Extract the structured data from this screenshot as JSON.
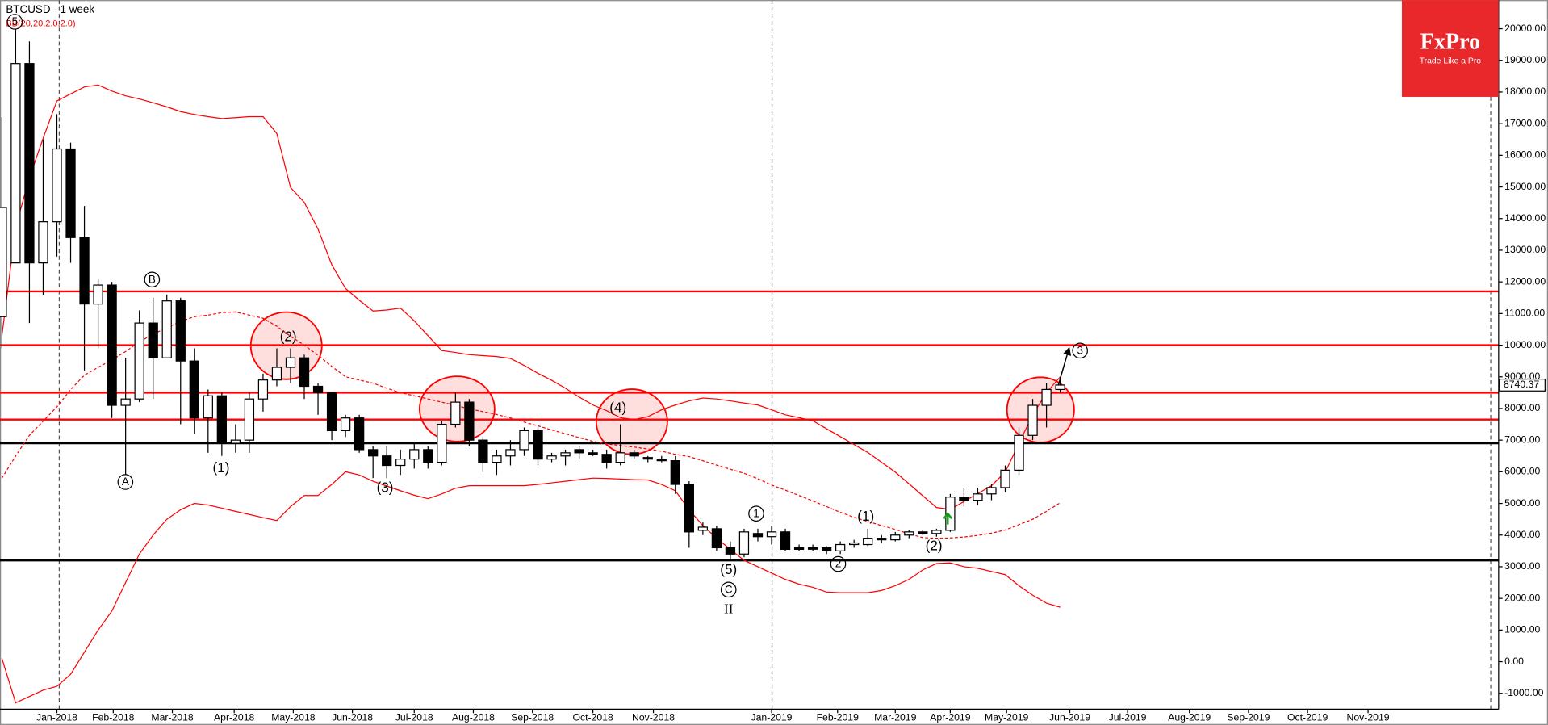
{
  "chart_data": {
    "type": "candlestick",
    "title": "BTCUSD - 1 week",
    "subtitle": "BB(20,20,2.0,2.0)",
    "brand": "FxPro",
    "tagline": "Trade Like a Pro",
    "xlim": [
      -0.14,
      108.9
    ],
    "xticks": [
      {
        "value": 4.0,
        "label": "Jan-2018"
      },
      {
        "value": 8.1,
        "label": "Feb-2018"
      },
      {
        "value": 12.4,
        "label": "Mar-2018"
      },
      {
        "value": 16.9,
        "label": "Apr-2018"
      },
      {
        "value": 21.2,
        "label": "May-2018"
      },
      {
        "value": 25.5,
        "label": "Jun-2018"
      },
      {
        "value": 30.0,
        "label": "Jul-2018"
      },
      {
        "value": 34.3,
        "label": "Aug-2018"
      },
      {
        "value": 38.6,
        "label": "Sep-2018"
      },
      {
        "value": 43.0,
        "label": "Oct-2018"
      },
      {
        "value": 47.4,
        "label": "Nov-2018"
      },
      {
        "value": 56.0,
        "label": "Jan-2019"
      },
      {
        "value": 60.8,
        "label": "Feb-2019"
      },
      {
        "value": 65.0,
        "label": "Mar-2019"
      },
      {
        "value": 69.0,
        "label": "Apr-2019"
      },
      {
        "value": 73.1,
        "label": "May-2019"
      },
      {
        "value": 77.7,
        "label": "Jun-2019"
      },
      {
        "value": 81.9,
        "label": "Jul-2019"
      },
      {
        "value": 86.4,
        "label": "Aug-2019"
      },
      {
        "value": 90.7,
        "label": "Sep-2019"
      },
      {
        "value": 95.0,
        "label": "Oct-2019"
      },
      {
        "value": 99.4,
        "label": "Nov-2019"
      }
    ],
    "ylim": [
      -1500,
      20905
    ],
    "yticks": [
      {
        "value": 20000,
        "label": "20000.00"
      },
      {
        "value": 19000,
        "label": "19000.00"
      },
      {
        "value": 18000,
        "label": "18000.00"
      },
      {
        "value": 17000,
        "label": "17000.00"
      },
      {
        "value": 16000,
        "label": "16000.00"
      },
      {
        "value": 15000,
        "label": "15000.00"
      },
      {
        "value": 14000,
        "label": "14000.00"
      },
      {
        "value": 13000,
        "label": "13000.00"
      },
      {
        "value": 12000,
        "label": "12000.00"
      },
      {
        "value": 11000,
        "label": "11000.00"
      },
      {
        "value": 10000,
        "label": "10000.00"
      },
      {
        "value": 9000,
        "label": "9000.00"
      },
      {
        "value": 8000,
        "label": "8000.00"
      },
      {
        "value": 7000,
        "label": "7000.00"
      },
      {
        "value": 6000,
        "label": "6000.00"
      },
      {
        "value": 5000,
        "label": "5000.00"
      },
      {
        "value": 4000,
        "label": "4000.00"
      },
      {
        "value": 3000,
        "label": "3000.00"
      },
      {
        "value": 2000,
        "label": "2000.00"
      },
      {
        "value": 1000,
        "label": "1000.00"
      },
      {
        "value": 0,
        "label": "0.00"
      },
      {
        "value": -1000,
        "label": "-1000.00"
      }
    ],
    "open": [
      10900,
      12600,
      18900,
      12600,
      13900,
      16200,
      13400,
      11300,
      11900,
      8100,
      8300,
      10700,
      9600,
      11400,
      9500,
      7700,
      8400,
      6900,
      7000,
      8300,
      8900,
      9300,
      9600,
      8700,
      8500,
      7300,
      7700,
      6700,
      6500,
      6200,
      6400,
      6700,
      6300,
      7500,
      8200,
      7000,
      6300,
      6500,
      6700,
      7300,
      6400,
      6500,
      6700,
      6600,
      6550,
      6300,
      6600,
      6450,
      6400,
      6350,
      5600,
      4150,
      4200,
      3600,
      3400,
      4050,
      3950,
      4100,
      3600,
      3600,
      3600,
      3500,
      3700,
      3700,
      3900,
      3850,
      4000,
      4100,
      4050,
      4150,
      5200,
      5100,
      5300,
      5500,
      6050,
      7150,
      8100,
      8600
    ],
    "high": [
      17200,
      20000,
      19600,
      16500,
      17300,
      16400,
      14400,
      12100,
      12000,
      9600,
      11100,
      11500,
      11600,
      11500,
      9900,
      8600,
      8500,
      7500,
      8500,
      9100,
      9900,
      9900,
      9700,
      8800,
      8500,
      7800,
      7800,
      6800,
      6800,
      6700,
      6900,
      6800,
      7600,
      8500,
      8300,
      7100,
      6700,
      7000,
      7400,
      7400,
      6600,
      6700,
      6800,
      6700,
      6700,
      7500,
      6700,
      6500,
      6500,
      6500,
      5700,
      4400,
      4300,
      3800,
      4200,
      4200,
      4300,
      4200,
      3700,
      3700,
      3650,
      3800,
      3850,
      4200,
      4000,
      4100,
      4150,
      4150,
      4200,
      5300,
      5500,
      5500,
      5600,
      6200,
      7400,
      8300,
      8800,
      9000
    ],
    "low": [
      9900,
      12600,
      10700,
      11600,
      12800,
      12600,
      9200,
      9900,
      7700,
      5900,
      8200,
      8300,
      9600,
      7500,
      7200,
      6600,
      6500,
      6600,
      6600,
      7900,
      8700,
      8800,
      8300,
      7800,
      7000,
      7100,
      6600,
      5800,
      5800,
      5900,
      6100,
      6100,
      6200,
      7400,
      6800,
      6000,
      5900,
      6200,
      6500,
      6200,
      6300,
      6200,
      6400,
      6500,
      6100,
      6200,
      6400,
      6300,
      6300,
      5300,
      3600,
      4000,
      3500,
      3200,
      3300,
      3800,
      3700,
      3500,
      3500,
      3500,
      3400,
      3400,
      3600,
      3650,
      3750,
      3800,
      3900,
      4000,
      3950,
      4100,
      4900,
      4950,
      5100,
      5350,
      5900,
      7000,
      7400,
      8500
    ],
    "close": [
      14350,
      18900,
      12600,
      13900,
      16200,
      13400,
      11300,
      11900,
      8100,
      8300,
      10700,
      9600,
      11400,
      9500,
      7700,
      8400,
      6900,
      7000,
      8300,
      8900,
      9300,
      9600,
      8700,
      8500,
      7300,
      7700,
      6700,
      6500,
      6200,
      6400,
      6700,
      6300,
      7500,
      8200,
      7000,
      6300,
      6500,
      6700,
      7300,
      6400,
      6500,
      6600,
      6600,
      6550,
      6300,
      6600,
      6500,
      6400,
      6350,
      5600,
      4100,
      4250,
      3600,
      3400,
      4100,
      3950,
      4100,
      3550,
      3550,
      3570,
      3500,
      3700,
      3750,
      3900,
      3850,
      4000,
      4100,
      4050,
      4150,
      5200,
      5100,
      5300,
      5500,
      6050,
      7150,
      8100,
      8600,
      8740.37
    ],
    "up_color": "#ffffff",
    "down_color": "#000000",
    "bands": {
      "color": "#ff0000",
      "upper": [
        10300,
        13730,
        15290,
        16540,
        17720,
        17940,
        18160,
        18220,
        18030,
        17880,
        17780,
        17660,
        17530,
        17380,
        17290,
        17220,
        17160,
        17190,
        17220,
        17220,
        16690,
        14980,
        14510,
        13670,
        12540,
        11790,
        11420,
        11080,
        11110,
        11170,
        10770,
        10300,
        9830,
        9770,
        9700,
        9670,
        9640,
        9580,
        9360,
        9110,
        8890,
        8640,
        8360,
        8110,
        7930,
        7710,
        7650,
        7740,
        7960,
        8110,
        8240,
        8330,
        8300,
        8240,
        8170,
        8110,
        7960,
        7800,
        7710,
        7610,
        7360,
        7110,
        6860,
        6610,
        6300,
        5990,
        5620,
        5240,
        4870,
        4810,
        5060,
        5310,
        5560,
        5990,
        6900,
        7800,
        8500,
        9000
      ],
      "middle": [
        5800,
        6500,
        7150,
        7600,
        8050,
        8600,
        9050,
        9300,
        9530,
        9800,
        10100,
        10350,
        10550,
        10750,
        10900,
        10950,
        11030,
        11050,
        10950,
        10850,
        10600,
        10280,
        10000,
        9680,
        9330,
        9000,
        8900,
        8800,
        8640,
        8500,
        8400,
        8300,
        8200,
        8100,
        7990,
        7900,
        7810,
        7700,
        7570,
        7450,
        7320,
        7200,
        7080,
        6960,
        6880,
        6830,
        6780,
        6720,
        6650,
        6550,
        6480,
        6350,
        6210,
        6080,
        5950,
        5780,
        5580,
        5420,
        5250,
        5080,
        4900,
        4720,
        4560,
        4430,
        4300,
        4180,
        4040,
        3920,
        3900,
        3910,
        3940,
        3990,
        4060,
        4160,
        4330,
        4500,
        4750,
        5020
      ],
      "lower": [
        100,
        -1300,
        -1100,
        -900,
        -780,
        -400,
        300,
        1000,
        1600,
        2500,
        3400,
        4000,
        4500,
        4800,
        5000,
        4950,
        4850,
        4750,
        4650,
        4550,
        4460,
        4900,
        5250,
        5250,
        5600,
        6000,
        5900,
        5700,
        5550,
        5400,
        5260,
        5150,
        5300,
        5480,
        5560,
        5560,
        5560,
        5560,
        5560,
        5600,
        5650,
        5700,
        5750,
        5800,
        5790,
        5770,
        5750,
        5740,
        5600,
        5400,
        4800,
        4300,
        3900,
        3550,
        3200,
        3000,
        2800,
        2600,
        2450,
        2350,
        2200,
        2180,
        2180,
        2180,
        2250,
        2400,
        2600,
        2900,
        3100,
        3120,
        3000,
        2950,
        2850,
        2750,
        2400,
        2100,
        1850,
        1720
      ]
    },
    "levels": [
      {
        "value": 11700,
        "color": "#ff0000"
      },
      {
        "value": 10000,
        "color": "#ff0000"
      },
      {
        "value": 8500,
        "color": "#ff0000"
      },
      {
        "value": 7650,
        "color": "#ff0000"
      },
      {
        "value": 6900,
        "color": "#000000"
      },
      {
        "value": 3200,
        "color": "#000000"
      }
    ],
    "annotations": [
      {
        "text": "5",
        "circled": true
      },
      {
        "text": "B",
        "circled": true
      },
      {
        "text": "A",
        "circled": true
      },
      {
        "text": "(1)",
        "circled": false
      },
      {
        "text": "(2)",
        "circled": false
      },
      {
        "text": "(3)",
        "circled": false
      },
      {
        "text": "(4)",
        "circled": false
      },
      {
        "text": "(5)",
        "circled": false
      },
      {
        "text": "C",
        "circled": true
      },
      {
        "text": "II",
        "circled": false
      },
      {
        "text": "1",
        "circled": true
      },
      {
        "text": "2",
        "circled": true
      },
      {
        "text": "(1)",
        "circled": false
      },
      {
        "text": "(2)",
        "circled": false
      },
      {
        "text": "3",
        "circled": true
      }
    ]
  }
}
